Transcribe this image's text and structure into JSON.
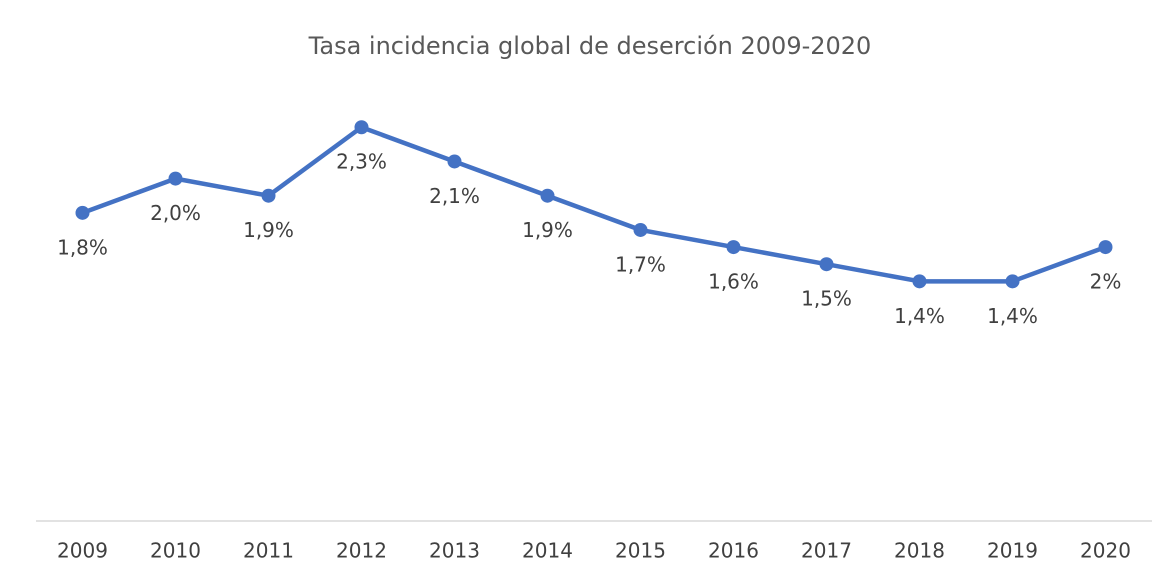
{
  "chart_data": {
    "type": "line",
    "title": "Tasa incidencia global de deserción 2009-2020",
    "categories": [
      "2009",
      "2010",
      "2011",
      "2012",
      "2013",
      "2014",
      "2015",
      "2016",
      "2017",
      "2018",
      "2019",
      "2020"
    ],
    "values": [
      1.8,
      2.0,
      1.9,
      2.3,
      2.1,
      1.9,
      1.7,
      1.6,
      1.5,
      1.4,
      1.4,
      1.6
    ],
    "value_labels": [
      "1,8%",
      "2,0%",
      "1,9%",
      "2,3%",
      "2,1%",
      "1,9%",
      "1,7%",
      "1,6%",
      "1,5%",
      "1,4%",
      "1,4%",
      "2%"
    ],
    "color": "#4472c4",
    "ylim": [
      0,
      2.5
    ]
  }
}
